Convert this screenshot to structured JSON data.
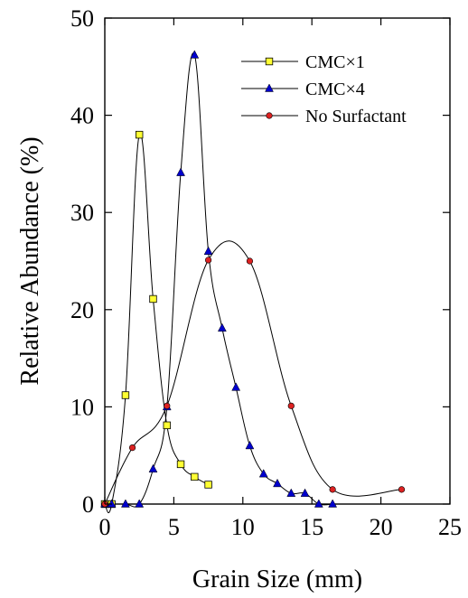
{
  "chart_data": {
    "type": "line",
    "xlabel": "Grain Size (mm)",
    "ylabel": "Relative Abundance (%)",
    "xlim": [
      0,
      25
    ],
    "ylim": [
      0,
      50
    ],
    "xticks": [
      0,
      5,
      10,
      15,
      20,
      25
    ],
    "yticks": [
      0,
      10,
      20,
      30,
      40,
      50
    ],
    "grid": false,
    "legend_position": "top-right",
    "series": [
      {
        "name": "CMC×1",
        "marker": "square",
        "marker_color": "#ffff33",
        "line_color": "#000000",
        "x": [
          0,
          0.5,
          1.5,
          2.5,
          3.5,
          4.5,
          5.5,
          6.5,
          7.5
        ],
        "y": [
          0,
          0,
          11.2,
          38,
          21.1,
          8.1,
          4.1,
          2.8,
          2
        ]
      },
      {
        "name": "CMC×4",
        "marker": "triangle",
        "marker_color": "#0000cc",
        "line_color": "#000000",
        "x": [
          0,
          0.5,
          1.5,
          2.5,
          3.5,
          4.5,
          5.5,
          6.5,
          7.5,
          8.5,
          9.5,
          10.5,
          11.5,
          12.5,
          13.5,
          14.5,
          15.5,
          16.5
        ],
        "y": [
          0,
          0,
          0,
          0,
          3.6,
          10,
          34.1,
          46.2,
          26,
          18.1,
          12,
          6,
          3.1,
          2.1,
          1.1,
          1.1,
          0,
          0
        ]
      },
      {
        "name": "No Surfactant",
        "marker": "circle",
        "marker_color": "#dd2222",
        "line_color": "#000000",
        "x": [
          0,
          2,
          4.5,
          7.5,
          10.5,
          13.5,
          16.5,
          21.5
        ],
        "y": [
          0,
          5.8,
          10.1,
          25.1,
          25,
          10.1,
          1.5,
          1.5
        ]
      }
    ]
  }
}
